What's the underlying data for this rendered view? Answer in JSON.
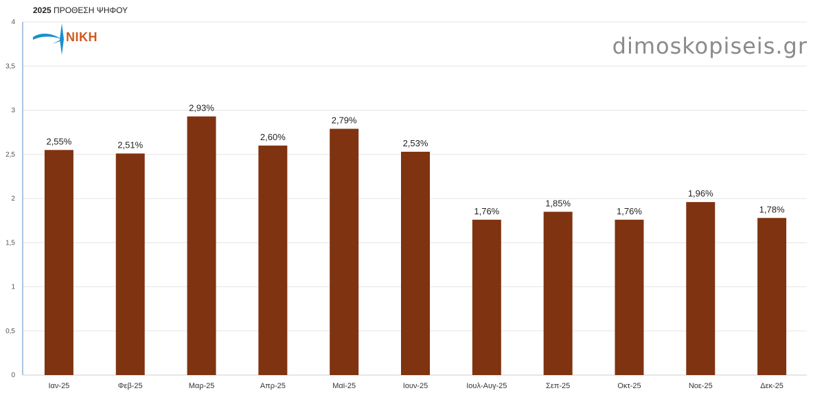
{
  "header": {
    "year": "2025",
    "subtitle": "ΠΡΟΘΕΣΗ ΨΗΦΟΥ"
  },
  "logo": {
    "text": "ΝΙΚΗ",
    "icon": "wind-star-icon",
    "color": "#d0581a",
    "icon_color": "#1a8fd0"
  },
  "watermark": {
    "text": "dimoskopiseis.gr"
  },
  "chart_data": {
    "type": "bar",
    "categories": [
      "Ιαν-25",
      "Φεβ-25",
      "Μαρ-25",
      "Απρ-25",
      "Μαϊ-25",
      "Ιουν-25",
      "Ιουλ-Αυγ-25",
      "Σεπ-25",
      "Οκτ-25",
      "Νοε-25",
      "Δεκ-25"
    ],
    "values": [
      2.55,
      2.51,
      2.93,
      2.6,
      2.79,
      2.53,
      1.76,
      1.85,
      1.76,
      1.96,
      1.78
    ],
    "data_labels": [
      "2,55%",
      "2,51%",
      "2,93%",
      "2,60%",
      "2,79%",
      "2,53%",
      "1,76%",
      "1,85%",
      "1,76%",
      "1,96%",
      "1,78%"
    ],
    "y_ticks": [
      0,
      0.5,
      1,
      1.5,
      2,
      2.5,
      3,
      3.5,
      4
    ],
    "y_tick_labels": [
      "0",
      "0,5",
      "1",
      "1,5",
      "2",
      "2,5",
      "3",
      "3,5",
      "4"
    ],
    "ylim": [
      0,
      4
    ],
    "grid": true,
    "bar_color": "#7f3310",
    "title": "2025 ΠΡΟΘΕΣΗ ΨΗΦΟΥ",
    "xlabel": "",
    "ylabel": ""
  }
}
